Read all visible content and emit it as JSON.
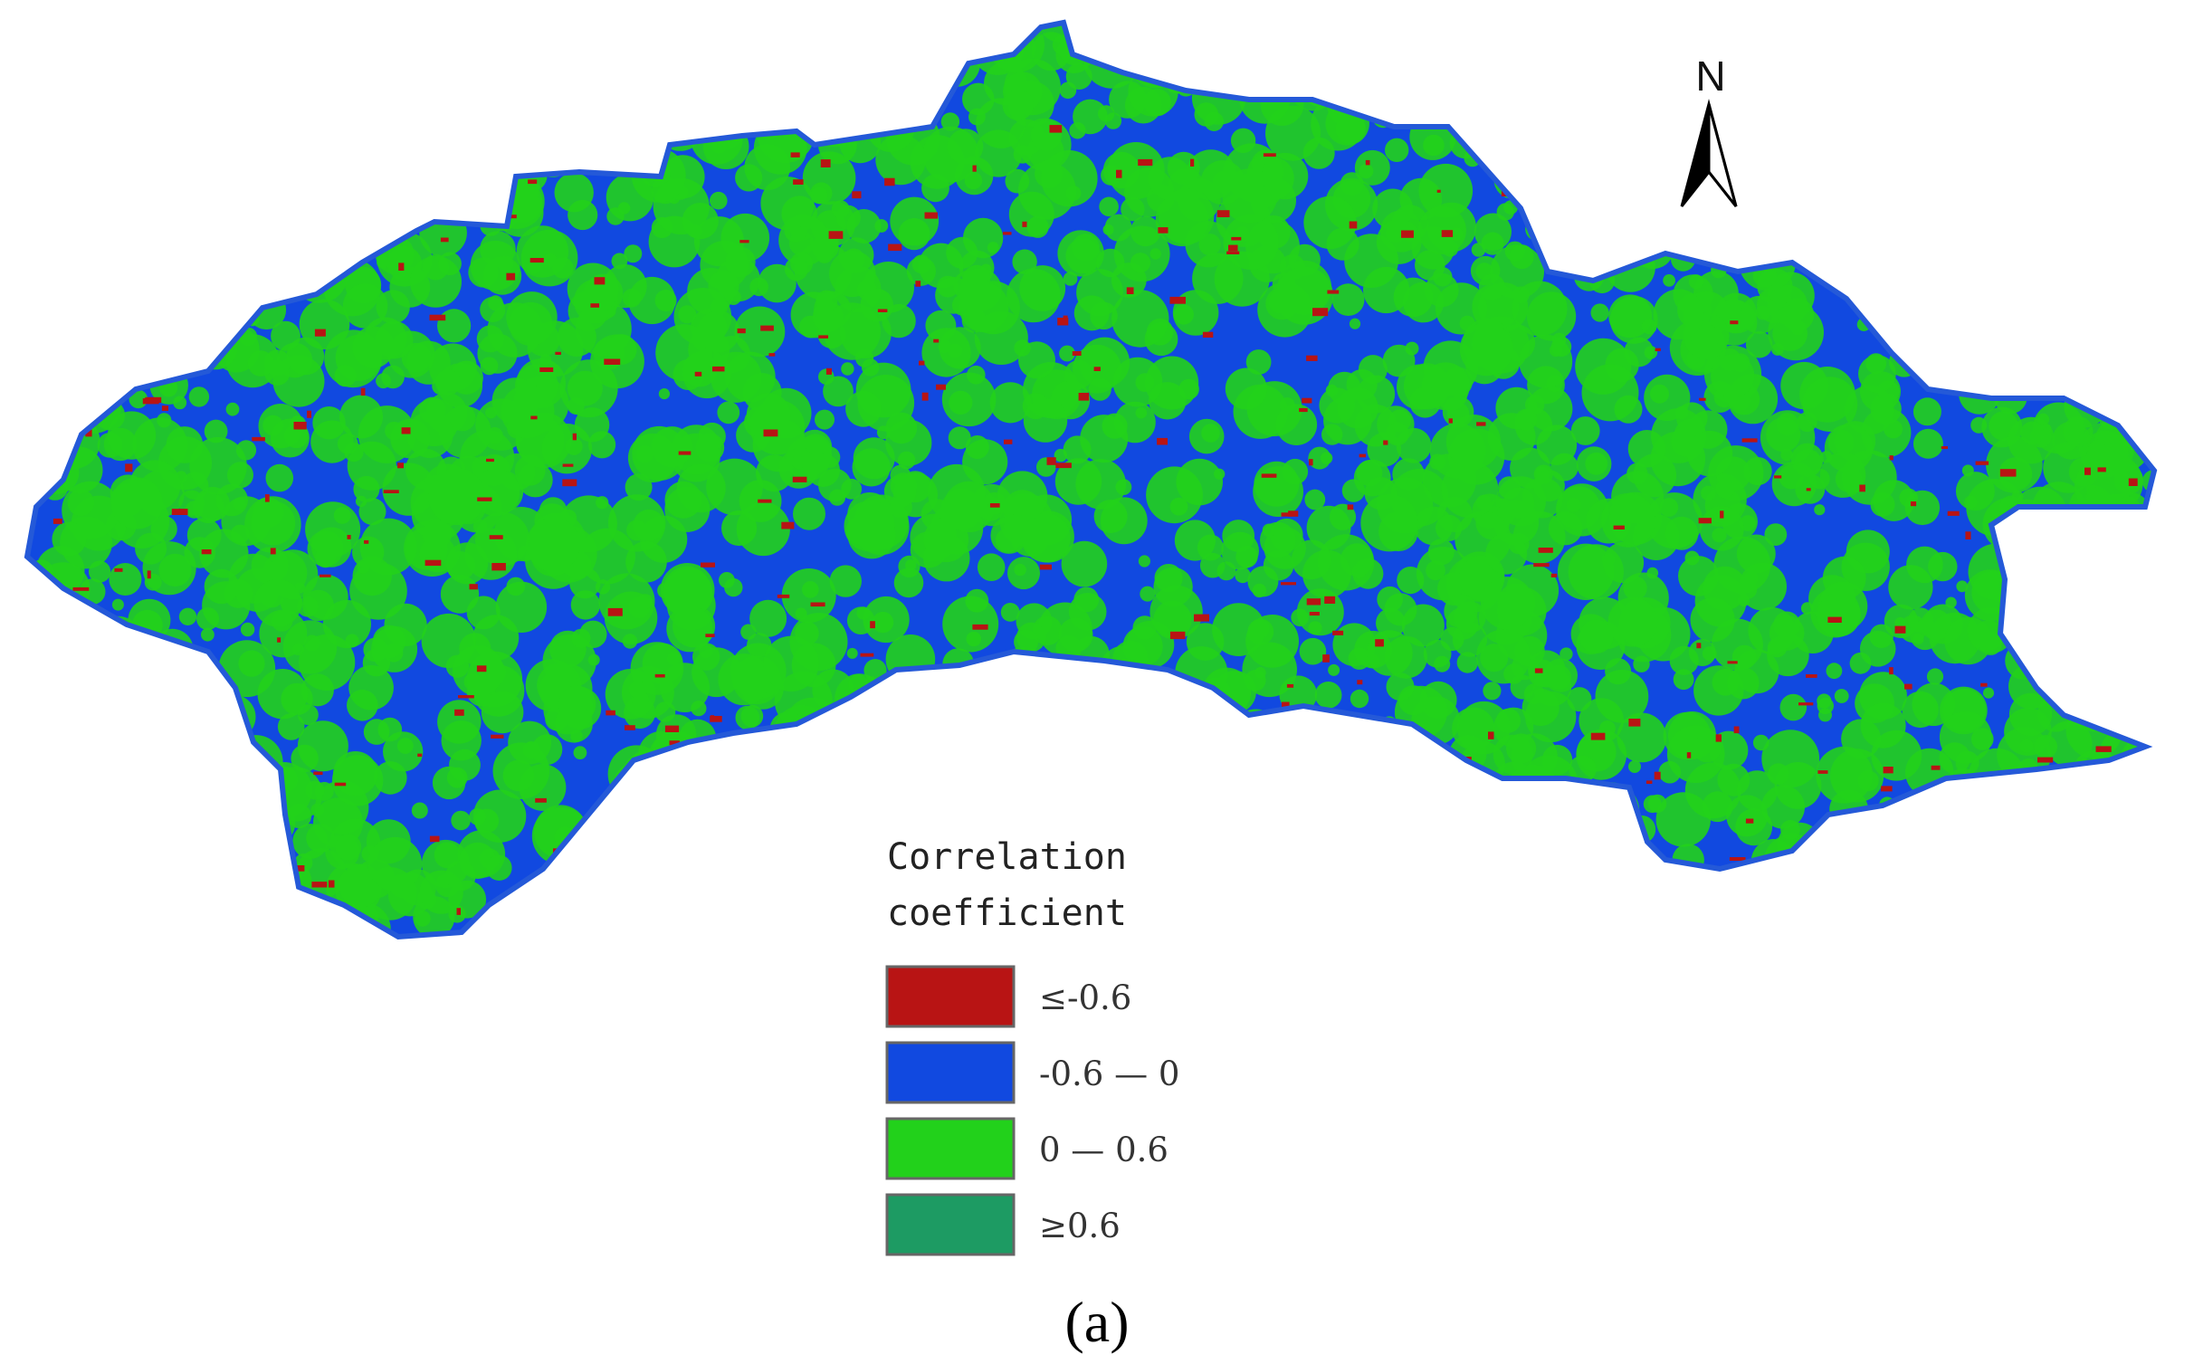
{
  "map": {
    "north_arrow": {
      "label": "N",
      "icon": "north-arrow-icon"
    },
    "legend": {
      "title_lines": [
        "Correlation",
        "coefficient"
      ],
      "classes": [
        {
          "label": "≤-0.6",
          "color": "#b81414"
        },
        {
          "label": "-0.6 — 0",
          "color": "#1149e0"
        },
        {
          "label": "0 — 0.6",
          "color": "#22d11b"
        },
        {
          "label": "≥0.6",
          "color": "#1d9b63"
        }
      ]
    },
    "region_colors": {
      "dominant": "#22d11b",
      "secondary": "#1149e0",
      "minor": "#b81414"
    },
    "panel_label": "(a)"
  }
}
